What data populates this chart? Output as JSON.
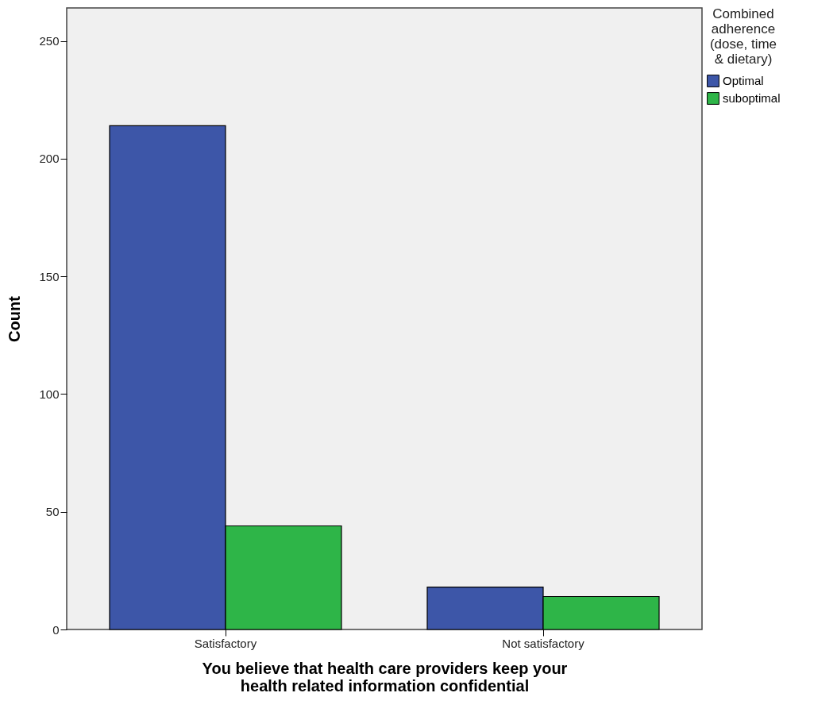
{
  "chart_data": {
    "type": "bar",
    "xlabel": "You believe that health care providers keep your health related information confidential",
    "ylabel": "Count",
    "legend_title": "Combined adherence (dose, time & dietary)",
    "categories": [
      "Satisfactory",
      "Not satisfactory"
    ],
    "series": [
      {
        "name": "Optimal",
        "color": "#3d56a8",
        "values": [
          214,
          18
        ]
      },
      {
        "name": "suboptimal",
        "color": "#2eb548",
        "values": [
          44,
          14
        ]
      }
    ],
    "ylim": [
      0,
      264
    ],
    "yticks": [
      0,
      50,
      100,
      150,
      200,
      250
    ],
    "grid": false,
    "legend": "top right"
  }
}
